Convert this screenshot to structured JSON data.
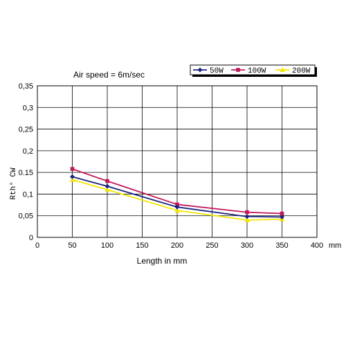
{
  "chart_data": {
    "type": "line",
    "title": "Air speed = 6m/sec",
    "xlabel": "Length in mm",
    "x_unit": "mm",
    "ylabel": "Rth° CW",
    "xlim": [
      0,
      400
    ],
    "ylim": [
      0,
      0.35
    ],
    "x_ticks": [
      0,
      50,
      100,
      150,
      200,
      250,
      300,
      350,
      400
    ],
    "x_tick_labels": [
      "0",
      "50",
      "100",
      "150",
      "200",
      "250",
      "300",
      "350",
      "400"
    ],
    "y_ticks": [
      0,
      0.05,
      0.1,
      0.15,
      0.2,
      0.25,
      0.3,
      0.35
    ],
    "y_tick_labels": [
      "0",
      "0,05",
      "0,1",
      "0.15",
      "0,2",
      "0,25",
      "0,3",
      "0,35"
    ],
    "grid": true,
    "legend_position": "top-right",
    "x": [
      50,
      100,
      200,
      300,
      350
    ],
    "series": [
      {
        "name": "50W",
        "color": "#1a237e",
        "marker": "diamond",
        "values": [
          0.14,
          0.118,
          0.07,
          0.048,
          0.047
        ]
      },
      {
        "name": "100W",
        "color": "#c2185b",
        "marker": "square",
        "values": [
          0.158,
          0.13,
          0.076,
          0.058,
          0.055
        ]
      },
      {
        "name": "200W",
        "color": "#f2e600",
        "marker": "triangle",
        "values": [
          0.133,
          0.11,
          0.062,
          0.04,
          0.042
        ]
      }
    ]
  }
}
